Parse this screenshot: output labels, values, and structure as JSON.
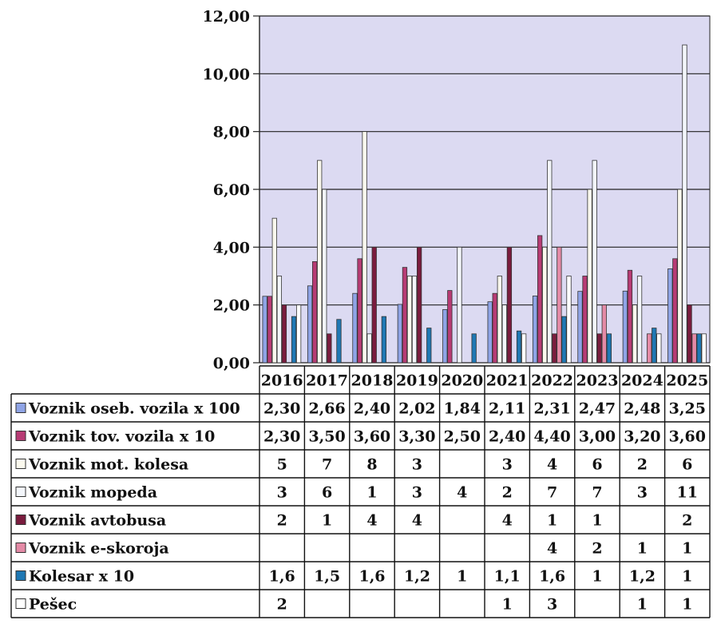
{
  "chart_data": {
    "type": "bar",
    "categories": [
      "2016",
      "2017",
      "2018",
      "2019",
      "2020",
      "2021",
      "2022",
      "2023",
      "2024",
      "2025"
    ],
    "ylim": [
      0,
      12
    ],
    "y_ticks": [
      "0,00",
      "2,00",
      "4,00",
      "6,00",
      "8,00",
      "10,00",
      "12,00"
    ],
    "grid": true,
    "legend_placement": "data-table-below",
    "series": [
      {
        "name": "Voznik oseb. vozila x 100",
        "color": "#8fa4e6",
        "legend_marker": "square",
        "values": [
          2.3,
          2.66,
          2.4,
          2.02,
          1.84,
          2.11,
          2.31,
          2.47,
          2.48,
          3.25
        ],
        "labels": [
          "2,30",
          "2,66",
          "2,40",
          "2,02",
          "1,84",
          "2,11",
          "2,31",
          "2,47",
          "2,48",
          "3,25"
        ]
      },
      {
        "name": "Voznik tov. vozila x 10",
        "color": "#b73b74",
        "legend_marker": "square",
        "values": [
          2.3,
          3.5,
          3.6,
          3.3,
          2.5,
          2.4,
          4.4,
          3.0,
          3.2,
          3.6
        ],
        "labels": [
          "2,30",
          "3,50",
          "3,60",
          "3,30",
          "2,50",
          "2,40",
          "4,40",
          "3,00",
          "3,20",
          "3,60"
        ]
      },
      {
        "name": "Voznik mot. kolesa",
        "color": "#fbf9ee",
        "legend_marker": "square",
        "values": [
          5,
          7,
          8,
          3,
          null,
          3,
          4,
          6,
          2,
          6
        ],
        "labels": [
          "5",
          "7",
          "8",
          "3",
          "",
          "3",
          "4",
          "6",
          "2",
          "6"
        ]
      },
      {
        "name": "Voznik mopeda",
        "color": "#f3f6fb",
        "legend_marker": "square",
        "values": [
          3,
          6,
          1,
          3,
          4,
          2,
          7,
          7,
          3,
          11
        ],
        "labels": [
          "3",
          "6",
          "1",
          "3",
          "4",
          "2",
          "7",
          "7",
          "3",
          "11"
        ]
      },
      {
        "name": "Voznik avtobusa",
        "color": "#7a1c3e",
        "legend_marker": "square",
        "values": [
          2,
          1,
          4,
          4,
          null,
          4,
          1,
          1,
          null,
          2
        ],
        "labels": [
          "2",
          "1",
          "4",
          "4",
          "",
          "4",
          "1",
          "1",
          "",
          "2"
        ]
      },
      {
        "name": "Voznik e-skoroja",
        "color": "#e48aa6",
        "legend_marker": "square",
        "values": [
          null,
          null,
          null,
          null,
          null,
          null,
          4,
          2,
          1,
          1
        ],
        "labels": [
          "",
          "",
          "",
          "",
          "",
          "",
          "4",
          "2",
          "1",
          "1"
        ]
      },
      {
        "name": "Kolesar x 10",
        "color": "#1f78b4",
        "legend_marker": "square",
        "values": [
          1.6,
          1.5,
          1.6,
          1.2,
          1,
          1.1,
          1.6,
          1,
          1.2,
          1
        ],
        "labels": [
          "1,6",
          "1,5",
          "1,6",
          "1,2",
          "1",
          "1,1",
          "1,6",
          "1",
          "1,2",
          "1"
        ]
      },
      {
        "name": "Pešec",
        "color": "#ffffff",
        "legend_marker": "square",
        "values": [
          2,
          null,
          null,
          null,
          null,
          1,
          3,
          null,
          1,
          1
        ],
        "labels": [
          "2",
          "",
          "",
          "",
          "",
          "1",
          "3",
          "",
          "1",
          "1"
        ]
      }
    ],
    "colors": {
      "plot_area": "#dcdaf2",
      "grid_line": "#222222",
      "table_border": "#111111"
    }
  }
}
